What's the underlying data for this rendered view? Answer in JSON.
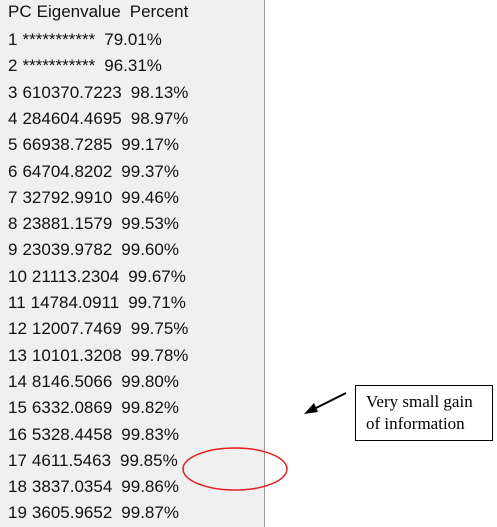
{
  "table": {
    "header": [
      "PC",
      "Eigenvalue",
      "Percent"
    ],
    "rows": [
      [
        "1",
        "***********",
        "79.01%"
      ],
      [
        "2",
        "***********",
        "96.31%"
      ],
      [
        "3",
        "610370.7223",
        "98.13%"
      ],
      [
        "4",
        "284604.4695",
        "98.97%"
      ],
      [
        "5",
        "66938.7285",
        "99.17%"
      ],
      [
        "6",
        "64704.8202",
        "99.37%"
      ],
      [
        "7",
        "32792.9910",
        "99.46%"
      ],
      [
        "8",
        "23881.1579",
        "99.53%"
      ],
      [
        "9",
        "23039.9782",
        "99.60%"
      ],
      [
        "10",
        "21113.2304",
        "99.67%"
      ],
      [
        "11",
        "14784.0911",
        "99.71%"
      ],
      [
        "12",
        "12007.7469",
        "99.75%"
      ],
      [
        "13",
        "10101.3208",
        "99.78%"
      ],
      [
        "14",
        "8146.5066",
        "99.80%"
      ],
      [
        "15",
        "6332.0869",
        "99.82%"
      ],
      [
        "16",
        "5328.4458",
        "99.83%"
      ],
      [
        "17",
        "4611.5463",
        "99.85%"
      ],
      [
        "18",
        "3837.0354",
        "99.86%"
      ],
      [
        "19",
        "3605.9652",
        "99.87%"
      ]
    ]
  },
  "annotation": {
    "lines": [
      "Very small gain",
      "of information"
    ]
  }
}
